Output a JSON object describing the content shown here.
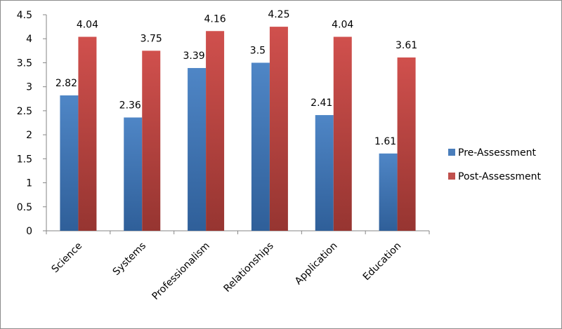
{
  "chart_data": {
    "type": "bar",
    "categories": [
      "Science",
      "Systems",
      "Professionalism",
      "Relationships",
      "Application",
      "Education"
    ],
    "series": [
      {
        "name": "Pre-Assessment",
        "values": [
          2.82,
          2.36,
          3.39,
          3.5,
          2.41,
          1.61
        ],
        "labels": [
          "2.82",
          "2.36",
          "3.39",
          "3.5",
          "2.41",
          "1.61"
        ],
        "color": "#4a7ebb"
      },
      {
        "name": "Post-Assessment",
        "values": [
          4.04,
          3.75,
          4.16,
          4.25,
          4.04,
          3.61
        ],
        "labels": [
          "4.04",
          "3.75",
          "4.16",
          "4.25",
          "4.04",
          "3.61"
        ],
        "color": "#c0504d"
      }
    ],
    "yticks": [
      "0",
      "0.5",
      "1",
      "1.5",
      "2",
      "2.5",
      "3",
      "3.5",
      "4",
      "4.5"
    ],
    "ylim": [
      0,
      4.5
    ],
    "title": "",
    "xlabel": "",
    "ylabel": "",
    "grid": false,
    "legend_position": "right"
  }
}
